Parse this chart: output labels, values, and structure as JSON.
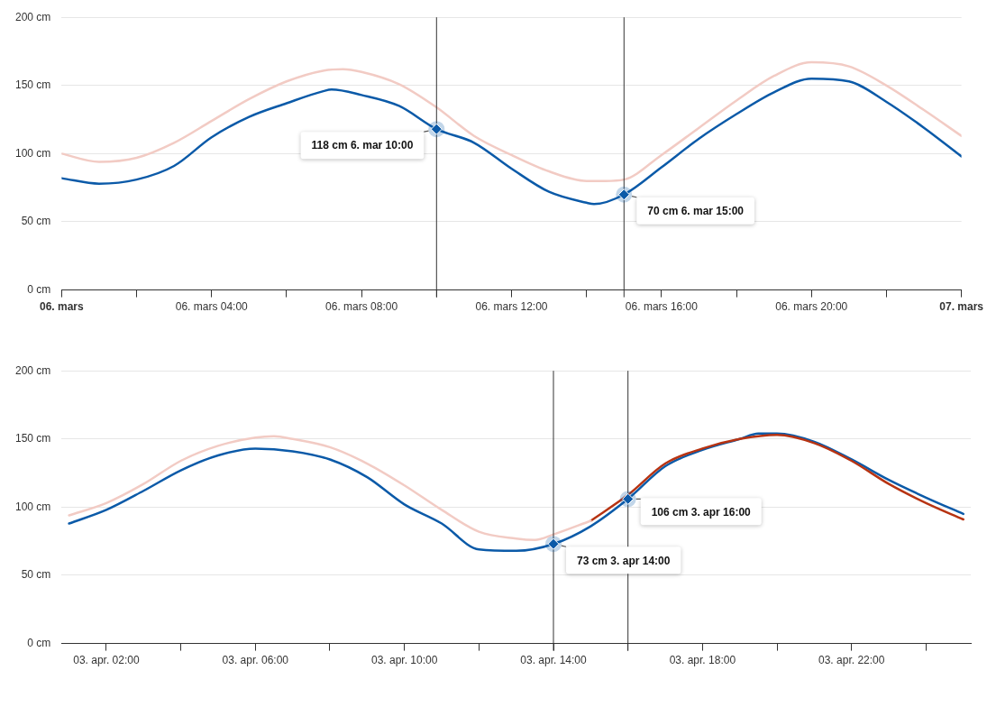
{
  "chart_data": [
    {
      "type": "line",
      "xlim": [
        "--03-06T00:00",
        "--03-07T00:00"
      ],
      "ylim": [
        0,
        200
      ],
      "xticks": [
        {
          "value": "--03-06T00:00",
          "label": "06. mars"
        },
        {
          "value": "--03-06T02:00",
          "label": null
        },
        {
          "value": "--03-06T04:00",
          "label": "06. mars 04:00"
        },
        {
          "value": "--03-06T06:00",
          "label": null
        },
        {
          "value": "--03-06T08:00",
          "label": "06. mars 08:00"
        },
        {
          "value": "--03-06T10:00",
          "label": null
        },
        {
          "value": "--03-06T12:00",
          "label": "06. mars 12:00"
        },
        {
          "value": "--03-06T14:00",
          "label": null
        },
        {
          "value": "--03-06T16:00",
          "label": "06. mars 16:00"
        },
        {
          "value": "--03-06T18:00",
          "label": null
        },
        {
          "value": "--03-06T20:00",
          "label": "06. mars 20:00"
        },
        {
          "value": "--03-06T22:00",
          "label": null
        },
        {
          "value": "--03-07T00:00",
          "label": "07. mars"
        }
      ],
      "yticks": [
        {
          "value": 0,
          "label": "0 cm"
        },
        {
          "value": 50,
          "label": "50 cm"
        },
        {
          "value": 100,
          "label": "100 cm"
        },
        {
          "value": 150,
          "label": "150 cm"
        },
        {
          "value": 200,
          "label": "200 cm"
        }
      ],
      "grid": "y",
      "series": [
        {
          "color": "#f2cbc4",
          "x": [
            "--03-06T00:00",
            "--03-06T01:00",
            "--03-06T02:00",
            "--03-06T03:00",
            "--03-06T04:00",
            "--03-06T05:00",
            "--03-06T06:00",
            "--03-06T07:00",
            "--03-06T07:30",
            "--03-06T08:00",
            "--03-06T09:00",
            "--03-06T10:00",
            "--03-06T11:00",
            "--03-06T12:00",
            "--03-06T13:00",
            "--03-06T14:00",
            "--03-06T14:30",
            "--03-06T15:00",
            "--03-06T16:00",
            "--03-06T17:00",
            "--03-06T18:00",
            "--03-06T19:00",
            "--03-06T20:00",
            "--03-06T21:00",
            "--03-06T22:00",
            "--03-06T23:00",
            "--03-07T00:00"
          ],
          "values": [
            100,
            94,
            97,
            108,
            124,
            140,
            153,
            161,
            162,
            160,
            151,
            134,
            113,
            99,
            87,
            80,
            80,
            81,
            99,
            119,
            139,
            157,
            167,
            164,
            150,
            132,
            113
          ]
        },
        {
          "color": "#0b5aa8",
          "x": [
            "--03-06T00:00",
            "--03-06T01:00",
            "--03-06T02:00",
            "--03-06T03:00",
            "--03-06T04:00",
            "--03-06T05:00",
            "--03-06T06:00",
            "--03-06T07:00",
            "--03-06T07:12",
            "--03-06T08:00",
            "--03-06T09:00",
            "--03-06T10:00",
            "--03-06T11:00",
            "--03-06T12:00",
            "--03-06T13:00",
            "--03-06T14:00",
            "--03-06T14:12",
            "--03-06T15:00",
            "--03-06T16:00",
            "--03-06T17:00",
            "--03-06T18:00",
            "--03-06T19:00",
            "--03-06T20:00",
            "--03-06T21:00",
            "--03-06T22:00",
            "--03-06T23:00",
            "--03-07T00:00"
          ],
          "values": [
            82,
            78,
            81,
            91,
            112,
            127,
            137,
            146,
            147,
            143,
            135,
            118,
            108,
            89,
            72,
            64,
            63,
            70,
            90,
            111,
            129,
            145,
            155,
            153,
            138,
            119,
            98
          ]
        }
      ],
      "ref_lines": [
        {
          "axis": "x",
          "value": "--03-06T10:00",
          "color": "#333333"
        },
        {
          "axis": "x",
          "value": "--03-06T15:00",
          "color": "#333333"
        }
      ],
      "annotations": [
        {
          "text": "118 cm 6. mar 10:00",
          "x": "--03-06T10:00",
          "y": 118
        },
        {
          "text": "70 cm 6. mar 15:00",
          "x": "--03-06T15:00",
          "y": 70
        }
      ]
    },
    {
      "type": "line",
      "xlim": [
        "--04-03T00:48",
        "--04-04T01:12"
      ],
      "ylim": [
        0,
        200
      ],
      "xticks": [
        {
          "value": "--04-03T02:00",
          "label": "03. apr. 02:00"
        },
        {
          "value": "--04-03T04:00",
          "label": null
        },
        {
          "value": "--04-03T06:00",
          "label": "03. apr. 06:00"
        },
        {
          "value": "--04-03T08:00",
          "label": null
        },
        {
          "value": "--04-03T10:00",
          "label": "03. apr. 10:00"
        },
        {
          "value": "--04-03T12:00",
          "label": null
        },
        {
          "value": "--04-03T14:00",
          "label": "03. apr. 14:00"
        },
        {
          "value": "--04-03T16:00",
          "label": null
        },
        {
          "value": "--04-03T18:00",
          "label": "03. apr. 18:00"
        },
        {
          "value": "--04-03T20:00",
          "label": null
        },
        {
          "value": "--04-03T22:00",
          "label": "03. apr. 22:00"
        },
        {
          "value": "--04-04T00:00",
          "label": null
        }
      ],
      "yticks": [
        {
          "value": 0,
          "label": "0 cm"
        },
        {
          "value": 50,
          "label": "50 cm"
        },
        {
          "value": 100,
          "label": "100 cm"
        },
        {
          "value": 150,
          "label": "150 cm"
        },
        {
          "value": 200,
          "label": "200 cm"
        }
      ],
      "grid": "y",
      "series": [
        {
          "color": "#f2cbc4",
          "x": [
            "--04-03T01:00",
            "--04-03T02:00",
            "--04-03T03:00",
            "--04-03T04:00",
            "--04-03T05:00",
            "--04-03T06:00",
            "--04-03T06:30",
            "--04-03T07:00",
            "--04-03T08:00",
            "--04-03T09:00",
            "--04-03T10:00",
            "--04-03T11:00",
            "--04-03T12:00",
            "--04-03T13:00",
            "--04-03T13:30",
            "--04-03T14:00",
            "--04-03T15:00"
          ],
          "values": [
            94,
            103,
            117,
            134,
            145,
            151,
            152,
            150,
            144,
            132,
            116,
            98,
            82,
            77,
            76,
            80,
            90
          ]
        },
        {
          "color": "#b73312",
          "x": [
            "--04-03T15:00",
            "--04-03T16:00",
            "--04-03T17:00",
            "--04-03T18:00",
            "--04-03T19:00",
            "--04-03T20:00",
            "--04-03T21:00",
            "--04-03T22:00",
            "--04-03T23:00",
            "--04-04T00:00",
            "--04-04T01:00"
          ],
          "values": [
            90,
            109,
            132,
            143,
            150,
            153,
            147,
            134,
            117,
            103,
            91
          ]
        },
        {
          "color": "#0b5aa8",
          "x": [
            "--04-03T01:00",
            "--04-03T02:00",
            "--04-03T03:00",
            "--04-03T04:00",
            "--04-03T05:00",
            "--04-03T06:00",
            "--04-03T07:00",
            "--04-03T08:00",
            "--04-03T09:00",
            "--04-03T10:00",
            "--04-03T11:00",
            "--04-03T12:00",
            "--04-03T13:00",
            "--04-03T14:00",
            "--04-03T15:00",
            "--04-03T16:00",
            "--04-03T17:00",
            "--04-03T18:00",
            "--04-03T19:00",
            "--04-03T19:30",
            "--04-03T20:00",
            "--04-03T21:00",
            "--04-03T22:00",
            "--04-03T23:00",
            "--04-04T00:00",
            "--04-04T01:00"
          ],
          "values": [
            88,
            98,
            112,
            127,
            138,
            143,
            141,
            135,
            122,
            102,
            88,
            69,
            68,
            73,
            86,
            106,
            130,
            142,
            150,
            154,
            154,
            148,
            135,
            120,
            107,
            95
          ]
        }
      ],
      "ref_lines": [
        {
          "axis": "x",
          "value": "--04-03T14:00",
          "color": "#333333"
        },
        {
          "axis": "x",
          "value": "--04-03T16:00",
          "color": "#333333"
        }
      ],
      "annotations": [
        {
          "text": "73 cm 3. apr 14:00",
          "x": "--04-03T14:00",
          "y": 73
        },
        {
          "text": "106 cm 3. apr 16:00",
          "x": "--04-03T16:00",
          "y": 106
        }
      ]
    }
  ]
}
